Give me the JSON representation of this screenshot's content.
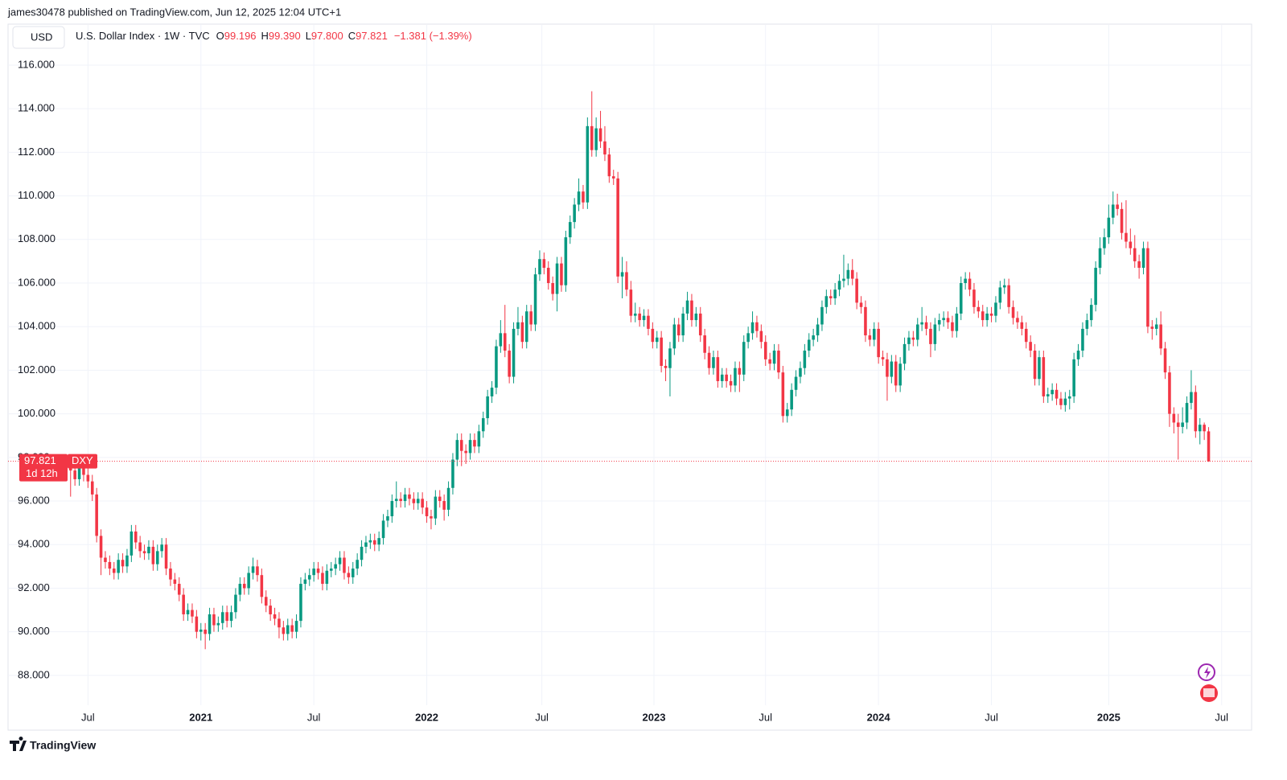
{
  "published": "james30478 published on TradingView.com, Jun 12, 2025 12:04 UTC+1",
  "brand": "TradingView",
  "header": {
    "currency": "USD",
    "symbol": "U.S. Dollar Index · 1W · TVC",
    "ohlc": [
      {
        "key": "O",
        "value": "99.196"
      },
      {
        "key": "H",
        "value": "99.390"
      },
      {
        "key": "L",
        "value": "97.800"
      },
      {
        "key": "C",
        "value": "97.821"
      }
    ],
    "change": "−1.381 (−1.39%)"
  },
  "price_tag": {
    "price": "97.821",
    "symbol": "DXY",
    "countdown": "1d 12h"
  },
  "chart_data": {
    "type": "candlestick",
    "up_color": "#089981",
    "down_color": "#f23645",
    "grid": true,
    "xlim": [
      -14.4,
      271.9
    ],
    "ylim": [
      86.63,
      116.7
    ],
    "xticks": [
      {
        "value": 4,
        "label": "Jul"
      },
      {
        "value": 30,
        "label": "2021"
      },
      {
        "value": 56,
        "label": "Jul"
      },
      {
        "value": 82,
        "label": "2022"
      },
      {
        "value": 108.5,
        "label": "Jul"
      },
      {
        "value": 134.3,
        "label": "2023"
      },
      {
        "value": 160,
        "label": "Jul"
      },
      {
        "value": 186,
        "label": "2024"
      },
      {
        "value": 212,
        "label": "Jul"
      },
      {
        "value": 239,
        "label": "2025"
      },
      {
        "value": 265,
        "label": "Jul"
      }
    ],
    "yticks": [
      {
        "value": 88,
        "label": "88.000"
      },
      {
        "value": 90,
        "label": "90.000"
      },
      {
        "value": 92,
        "label": "92.000"
      },
      {
        "value": 94,
        "label": "94.000"
      },
      {
        "value": 96,
        "label": "96.000"
      },
      {
        "value": 98,
        "label": "98.000"
      },
      {
        "value": 100,
        "label": "100.000"
      },
      {
        "value": 102,
        "label": "102.000"
      },
      {
        "value": 104,
        "label": "104.000"
      },
      {
        "value": 106,
        "label": "106.000"
      },
      {
        "value": 108,
        "label": "108.000"
      },
      {
        "value": 110,
        "label": "110.000"
      },
      {
        "value": 112,
        "label": "112.000"
      },
      {
        "value": 114,
        "label": "114.000"
      },
      {
        "value": 116,
        "label": "116.000"
      }
    ],
    "open": [
      97.5,
      97.4,
      97.0,
      97.5,
      97.2,
      96.9,
      96.3,
      94.4,
      93.4,
      93.2,
      92.9,
      92.7,
      93.3,
      93.0,
      93.5,
      94.6,
      94.1,
      93.7,
      93.6,
      93.9,
      93.1,
      93.7,
      94.0,
      92.9,
      92.4,
      92.2,
      91.7,
      90.8,
      91.0,
      90.7,
      90.0,
      90.1,
      89.9,
      90.8,
      90.3,
      90.4,
      90.9,
      90.5,
      90.9,
      91.7,
      92.2,
      92.0,
      92.7,
      93.0,
      92.6,
      91.6,
      91.2,
      90.8,
      90.6,
      90.2,
      89.9,
      90.3,
      90.0,
      90.5,
      92.2,
      92.4,
      92.6,
      92.9,
      92.7,
      92.2,
      92.8,
      92.9,
      93.1,
      93.4,
      92.7,
      92.5,
      92.9,
      93.3,
      93.9,
      94.1,
      94.2,
      94.0,
      94.3,
      95.1,
      95.3,
      96.0,
      96.1,
      96.0,
      96.3,
      96.1,
      95.9,
      96.1,
      95.7,
      95.3,
      95.2,
      96.2,
      96.0,
      95.6,
      96.6,
      97.9,
      98.8,
      98.3,
      98.2,
      98.8,
      98.5,
      99.2,
      99.8,
      100.8,
      101.2,
      103.1,
      103.7,
      102.9,
      101.7,
      103.9,
      104.2,
      103.3,
      104.7,
      104.1,
      106.4,
      107.1,
      106.7,
      106.0,
      105.5,
      106.9,
      105.9,
      108.1,
      108.8,
      109.6,
      110.2,
      109.7,
      113.2,
      112.1,
      113.1,
      112.5,
      111.9,
      110.9,
      110.8,
      106.3,
      106.5,
      105.7,
      104.5,
      104.6,
      104.3,
      104.5,
      103.9,
      103.3,
      103.5,
      102.2,
      102.1,
      103.0,
      104.1,
      103.6,
      104.6,
      105.2,
      104.3,
      104.6,
      103.6,
      102.8,
      102.1,
      102.6,
      101.5,
      101.8,
      101.5,
      101.3,
      102.1,
      101.8,
      103.3,
      103.7,
      104.2,
      103.8,
      103.3,
      102.5,
      102.3,
      102.9,
      101.9,
      99.9,
      100.2,
      101.1,
      101.7,
      102.1,
      102.9,
      103.4,
      103.6,
      104.1,
      104.9,
      105.4,
      105.3,
      105.7,
      106.1,
      106.2,
      106.6,
      106.2,
      105.1,
      104.9,
      103.6,
      103.4,
      103.9,
      102.6,
      102.5,
      101.7,
      102.4,
      101.3,
      102.3,
      103.2,
      103.5,
      103.4,
      104.1,
      104.2,
      103.9,
      103.2,
      104.1,
      104.3,
      104.4,
      104.2,
      103.8,
      104.6,
      106.0,
      106.2,
      105.7,
      104.9,
      104.7,
      104.3,
      104.6,
      104.5,
      105.1,
      105.8,
      105.9,
      104.9,
      104.4,
      104.2,
      103.9,
      103.3,
      102.9,
      101.6,
      102.6,
      100.8,
      100.9,
      101.1,
      100.7,
      100.4,
      100.7,
      100.8,
      102.5,
      102.9,
      103.9,
      104.3,
      105.0,
      106.7,
      107.6,
      108.1,
      109.0,
      109.6,
      109.4,
      108.3,
      107.9,
      107.6,
      107.0,
      106.7,
      107.6,
      104.0,
      103.9,
      104.1,
      103.0,
      101.9,
      100.0,
      99.6,
      99.4,
      99.6,
      100.5,
      101.0,
      99.2,
      99.5,
      99.196
    ],
    "high": [
      97.8,
      97.7,
      97.8,
      97.8,
      97.5,
      97.2,
      96.6,
      94.7,
      93.7,
      93.5,
      93.2,
      93.6,
      93.6,
      93.8,
      94.9,
      94.9,
      94.4,
      94.0,
      94.2,
      94.2,
      94.0,
      94.3,
      94.3,
      93.2,
      92.7,
      92.5,
      92.0,
      91.3,
      91.3,
      91.0,
      90.4,
      90.4,
      91.1,
      91.1,
      90.7,
      91.2,
      91.2,
      91.2,
      92.0,
      92.5,
      92.5,
      93.0,
      93.4,
      93.3,
      92.9,
      91.9,
      91.5,
      91.1,
      90.9,
      90.5,
      90.6,
      90.6,
      90.8,
      92.5,
      92.7,
      92.9,
      93.2,
      93.2,
      93.0,
      93.1,
      93.2,
      93.4,
      93.7,
      93.7,
      93.0,
      93.2,
      93.6,
      94.2,
      94.4,
      94.5,
      94.5,
      94.6,
      95.4,
      95.6,
      96.3,
      96.9,
      96.4,
      96.6,
      96.6,
      96.4,
      96.4,
      96.4,
      96.0,
      95.6,
      96.5,
      96.5,
      96.3,
      96.9,
      98.2,
      99.1,
      99.1,
      98.6,
      99.1,
      99.1,
      99.5,
      100.1,
      101.1,
      101.5,
      103.4,
      104.3,
      105.0,
      103.2,
      104.2,
      104.9,
      104.5,
      105.0,
      105.0,
      106.7,
      107.5,
      107.4,
      107.0,
      106.3,
      107.2,
      107.2,
      108.4,
      109.1,
      109.9,
      110.8,
      110.5,
      113.6,
      114.8,
      113.6,
      113.9,
      113.2,
      112.2,
      111.2,
      111.1,
      107.2,
      107.0,
      106.1,
      105.1,
      104.9,
      104.8,
      104.8,
      104.2,
      103.8,
      103.8,
      102.5,
      103.3,
      104.4,
      104.4,
      104.9,
      105.6,
      105.5,
      104.9,
      104.9,
      103.9,
      103.1,
      102.9,
      102.9,
      102.1,
      102.1,
      101.8,
      102.4,
      102.4,
      103.6,
      104.0,
      104.7,
      104.5,
      104.1,
      103.6,
      102.8,
      103.2,
      103.2,
      102.2,
      100.5,
      101.4,
      102.0,
      102.4,
      103.2,
      103.7,
      103.9,
      104.4,
      105.2,
      105.7,
      105.7,
      106.0,
      106.4,
      107.3,
      106.9,
      107.1,
      106.5,
      105.4,
      105.2,
      103.9,
      104.2,
      104.2,
      102.9,
      102.8,
      102.7,
      102.7,
      102.6,
      103.5,
      103.8,
      103.8,
      104.4,
      104.9,
      104.5,
      104.2,
      104.4,
      104.6,
      104.7,
      104.7,
      104.5,
      104.9,
      106.3,
      106.5,
      106.5,
      106.0,
      105.2,
      105.0,
      104.9,
      104.9,
      105.4,
      106.1,
      106.2,
      106.2,
      105.2,
      104.7,
      104.5,
      104.2,
      103.6,
      103.2,
      102.9,
      102.9,
      101.2,
      101.4,
      101.4,
      101.0,
      101.0,
      101.1,
      102.8,
      103.2,
      104.2,
      104.6,
      105.3,
      107.0,
      108.1,
      108.5,
      109.6,
      110.2,
      110.1,
      109.7,
      109.8,
      108.5,
      108.2,
      107.3,
      107.9,
      107.9,
      104.3,
      104.4,
      104.7,
      103.3,
      102.2,
      100.3,
      100.0,
      100.3,
      100.8,
      102.0,
      101.3,
      99.8,
      99.6,
      99.39
    ],
    "low": [
      96.2,
      96.7,
      96.7,
      96.9,
      96.6,
      96.0,
      94.1,
      92.6,
      92.9,
      92.6,
      92.4,
      92.4,
      92.7,
      92.7,
      93.2,
      93.8,
      93.4,
      93.3,
      93.3,
      92.8,
      92.8,
      93.4,
      92.6,
      92.1,
      91.9,
      91.4,
      90.5,
      90.5,
      90.4,
      89.7,
      89.6,
      89.2,
      89.6,
      90.0,
      90.0,
      90.1,
      90.2,
      90.2,
      90.6,
      91.4,
      91.7,
      91.7,
      92.4,
      92.3,
      91.3,
      90.9,
      90.5,
      90.3,
      89.7,
      89.6,
      89.6,
      89.7,
      89.7,
      90.2,
      91.9,
      92.1,
      92.3,
      92.4,
      91.9,
      91.9,
      92.5,
      92.6,
      92.8,
      92.4,
      92.2,
      92.2,
      92.6,
      93.0,
      93.6,
      93.8,
      93.7,
      93.7,
      94.0,
      94.8,
      95.0,
      95.7,
      95.7,
      95.7,
      95.8,
      95.6,
      95.6,
      95.4,
      95.0,
      94.7,
      94.9,
      95.7,
      95.1,
      95.3,
      96.3,
      97.6,
      97.6,
      97.7,
      97.9,
      98.2,
      98.2,
      98.9,
      99.5,
      100.5,
      100.9,
      102.8,
      102.6,
      101.4,
      101.4,
      103.6,
      103.0,
      103.0,
      103.8,
      103.8,
      106.1,
      106.4,
      105.7,
      105.2,
      104.7,
      105.6,
      105.6,
      107.8,
      108.5,
      109.3,
      109.4,
      109.4,
      111.8,
      111.8,
      112.2,
      111.6,
      110.6,
      110.5,
      106.0,
      105.3,
      105.4,
      104.2,
      104.2,
      104.0,
      104.0,
      103.6,
      103.0,
      103.0,
      101.9,
      101.5,
      100.8,
      102.7,
      103.3,
      103.3,
      104.3,
      104.0,
      104.0,
      103.3,
      102.5,
      101.8,
      101.8,
      101.2,
      101.2,
      101.2,
      101.0,
      101.0,
      101.0,
      101.5,
      103.0,
      103.4,
      103.5,
      103.0,
      102.2,
      102.0,
      102.0,
      101.6,
      99.6,
      99.6,
      99.9,
      100.8,
      101.4,
      101.8,
      102.6,
      103.1,
      103.3,
      103.8,
      104.6,
      105.0,
      105.0,
      105.4,
      105.8,
      105.9,
      105.9,
      104.8,
      104.6,
      103.3,
      103.1,
      103.1,
      102.3,
      102.2,
      100.6,
      101.4,
      101.0,
      101.0,
      102.0,
      102.9,
      103.1,
      103.1,
      103.8,
      103.6,
      102.6,
      102.9,
      103.8,
      104.0,
      103.9,
      103.5,
      103.5,
      104.3,
      105.7,
      105.4,
      104.6,
      104.4,
      104.0,
      104.0,
      104.2,
      104.2,
      104.8,
      105.5,
      104.6,
      104.1,
      103.9,
      103.6,
      103.0,
      102.6,
      101.3,
      101.3,
      100.5,
      100.5,
      100.6,
      100.4,
      100.2,
      100.1,
      100.2,
      100.5,
      102.2,
      102.6,
      103.6,
      104.0,
      104.7,
      106.4,
      107.3,
      107.8,
      108.7,
      109.1,
      108.0,
      107.6,
      107.3,
      106.7,
      106.2,
      106.4,
      103.7,
      103.4,
      103.6,
      102.7,
      101.6,
      99.4,
      99.1,
      97.9,
      99.1,
      99.3,
      100.2,
      98.9,
      98.6,
      98.8,
      97.8
    ],
    "close": [
      97.4,
      97.0,
      97.5,
      97.2,
      96.9,
      96.3,
      94.4,
      93.4,
      93.2,
      92.9,
      92.7,
      93.3,
      93.0,
      93.5,
      94.6,
      94.1,
      93.7,
      93.6,
      93.9,
      93.1,
      93.7,
      94.0,
      92.9,
      92.4,
      92.2,
      91.7,
      90.8,
      91.0,
      90.7,
      90.0,
      90.1,
      89.9,
      90.8,
      90.3,
      90.4,
      90.9,
      90.5,
      90.9,
      91.7,
      92.2,
      92.0,
      92.7,
      93.0,
      92.6,
      91.6,
      91.2,
      90.8,
      90.6,
      90.2,
      89.9,
      90.3,
      90.0,
      90.5,
      92.2,
      92.4,
      92.6,
      92.9,
      92.7,
      92.2,
      92.8,
      92.9,
      93.1,
      93.4,
      92.7,
      92.5,
      92.9,
      93.3,
      93.9,
      94.1,
      94.2,
      94.0,
      94.3,
      95.1,
      95.3,
      96.0,
      96.1,
      96.0,
      96.3,
      96.1,
      95.9,
      96.1,
      95.7,
      95.3,
      95.2,
      96.2,
      96.0,
      95.6,
      96.6,
      97.9,
      98.8,
      98.3,
      98.2,
      98.8,
      98.5,
      99.2,
      99.8,
      100.8,
      101.2,
      103.1,
      103.7,
      102.9,
      101.7,
      103.9,
      104.2,
      103.3,
      104.7,
      104.1,
      106.4,
      107.1,
      106.7,
      106.0,
      105.5,
      106.9,
      105.9,
      108.1,
      108.8,
      109.6,
      110.2,
      109.7,
      113.2,
      112.1,
      113.1,
      112.5,
      111.9,
      110.9,
      110.8,
      106.3,
      106.5,
      105.7,
      104.5,
      104.6,
      104.3,
      104.5,
      103.9,
      103.3,
      103.5,
      102.2,
      102.1,
      103.0,
      104.1,
      103.6,
      104.6,
      105.2,
      104.3,
      104.6,
      103.6,
      102.8,
      102.1,
      102.6,
      101.5,
      101.8,
      101.5,
      101.3,
      102.1,
      101.8,
      103.3,
      103.7,
      104.2,
      103.8,
      103.3,
      102.5,
      102.3,
      102.9,
      101.9,
      99.9,
      100.2,
      101.1,
      101.7,
      102.1,
      102.9,
      103.4,
      103.6,
      104.1,
      104.9,
      105.4,
      105.3,
      105.7,
      106.1,
      106.2,
      106.6,
      106.2,
      105.1,
      104.9,
      103.6,
      103.4,
      103.9,
      102.6,
      102.5,
      101.7,
      102.4,
      101.3,
      102.3,
      103.2,
      103.5,
      103.4,
      104.1,
      104.2,
      103.9,
      103.2,
      104.1,
      104.3,
      104.4,
      104.2,
      103.8,
      104.6,
      106.0,
      106.2,
      105.7,
      104.9,
      104.7,
      104.3,
      104.6,
      104.5,
      105.1,
      105.8,
      105.9,
      104.9,
      104.4,
      104.2,
      103.9,
      103.3,
      102.9,
      101.6,
      102.6,
      100.8,
      100.9,
      101.1,
      100.7,
      100.4,
      100.7,
      100.8,
      102.5,
      102.9,
      103.9,
      104.3,
      105.0,
      106.7,
      107.6,
      108.1,
      109.0,
      109.6,
      109.4,
      108.3,
      107.9,
      107.6,
      107.0,
      106.7,
      107.6,
      104.0,
      103.9,
      104.1,
      103.0,
      101.9,
      100.0,
      99.6,
      99.4,
      99.6,
      100.5,
      101.0,
      99.2,
      99.5,
      99.2,
      97.821
    ]
  }
}
